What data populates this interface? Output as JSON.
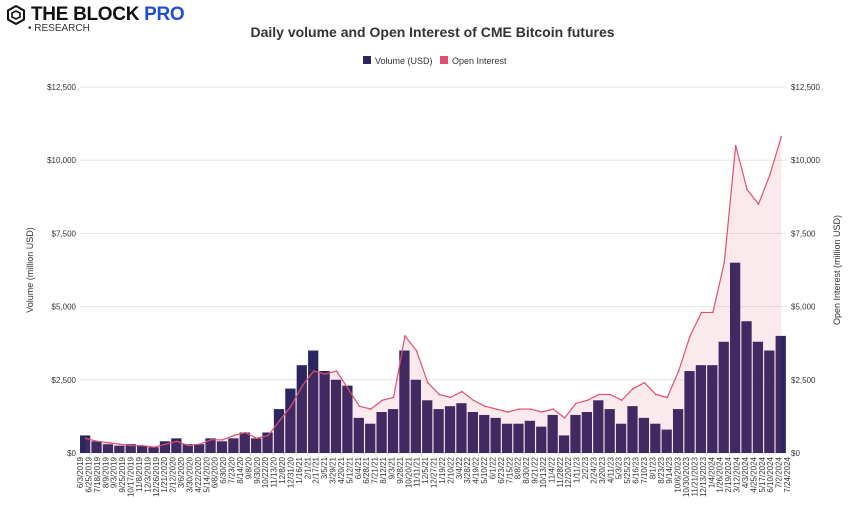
{
  "brand": {
    "name": "THE BLOCK",
    "pro": "PRO",
    "sub": "• RESEARCH"
  },
  "chart_data": {
    "type": "bar+line",
    "title": "Daily volume and Open Interest of CME Bitcoin futures",
    "ylabel": "Volume (million USD)",
    "y2label": "Open Interest (million USD)",
    "ylim": [
      0,
      12500
    ],
    "y2lim": [
      0,
      12500
    ],
    "yticks": [
      "$0",
      "$2,500",
      "$5,000",
      "$7,500",
      "$10,000",
      "$12,500"
    ],
    "y2ticks": [
      "$0",
      "$2,500",
      "$5,000",
      "$7,500",
      "$10,000",
      "$12,500"
    ],
    "grid": true,
    "legend_position": "top",
    "colors": {
      "volume": "#2b2560",
      "oi": "#e0506e"
    },
    "xticks": [
      "6/3/2019",
      "6/25/2019",
      "7/18/2019",
      "8/9/2019",
      "9/3/2019",
      "9/25/2019",
      "10/17/2019",
      "11/8/2019",
      "12/3/2019",
      "12/26/2019",
      "1/21/2020",
      "2/12/2020",
      "3/6/2020",
      "3/30/2020",
      "4/22/2020",
      "5/14/2020",
      "6/8/2020",
      "6/30/20",
      "7/23/20",
      "8/14/20",
      "9/8/20",
      "9/30/20",
      "10/22/20",
      "11/13/20",
      "12/8/20",
      "12/31/20",
      "1/16/21",
      "2/1/21",
      "2/17/21",
      "3/5/21",
      "3/29/21",
      "4/20/21",
      "5/12/21",
      "6/4/21",
      "6/28/21",
      "7/21/21",
      "8/12/21",
      "9/3/21",
      "9/28/21",
      "10/20/21",
      "11/11/21",
      "12/5/21",
      "12/27/21",
      "1/19/22",
      "2/10/22",
      "3/4/22",
      "3/28/22",
      "4/19/22",
      "5/10/22",
      "6/1/22",
      "6/23/22",
      "7/15/22",
      "8/8/22",
      "8/30/22",
      "9/21/22",
      "10/13/22",
      "11/4/22",
      "11/28/22",
      "12/20/22",
      "1/11/23",
      "2/2/23",
      "2/24/23",
      "3/20/23",
      "4/11/23",
      "5/3/23",
      "5/25/23",
      "6/16/23",
      "7/10/23",
      "8/1/23",
      "8/23/23",
      "9/14/23",
      "10/6/2023",
      "10/30/2023",
      "11/21/2023",
      "12/13/2023",
      "1/4/2024",
      "1/26/2024",
      "2/19/2024",
      "3/12/2024",
      "4/3/2024",
      "4/25/2024",
      "5/17/2024",
      "6/10/2024",
      "7/2/2024",
      "7/24/2024"
    ],
    "series": [
      {
        "name": "Volume (USD)",
        "kind": "bar",
        "values": [
          600,
          400,
          300,
          250,
          300,
          250,
          200,
          400,
          500,
          300,
          300,
          500,
          400,
          500,
          700,
          500,
          700,
          1500,
          2200,
          3000,
          3500,
          2800,
          2500,
          2300,
          1200,
          1000,
          1400,
          1500,
          3500,
          2500,
          1800,
          1500,
          1600,
          1700,
          1400,
          1300,
          1200,
          1000,
          1000,
          1100,
          900,
          1300,
          600,
          1300,
          1400,
          1800,
          1500,
          1000,
          1600,
          1200,
          1000,
          800,
          1500,
          2800,
          3000,
          3000,
          3800,
          6500,
          4500,
          3800,
          3500,
          4000
        ]
      },
      {
        "name": "Open Interest",
        "kind": "line",
        "values": [
          500,
          400,
          350,
          300,
          250,
          250,
          200,
          300,
          400,
          250,
          300,
          450,
          450,
          600,
          700,
          500,
          600,
          1100,
          1600,
          2300,
          2800,
          2700,
          2800,
          2200,
          1600,
          1500,
          1800,
          1900,
          4000,
          3500,
          2400,
          2000,
          1900,
          2100,
          1800,
          1600,
          1500,
          1400,
          1500,
          1500,
          1400,
          1500,
          1200,
          1700,
          1800,
          2000,
          2000,
          1800,
          2200,
          2400,
          2000,
          1900,
          2800,
          4000,
          4800,
          4800,
          6500,
          10500,
          9000,
          8500,
          9500,
          10800
        ]
      }
    ]
  }
}
